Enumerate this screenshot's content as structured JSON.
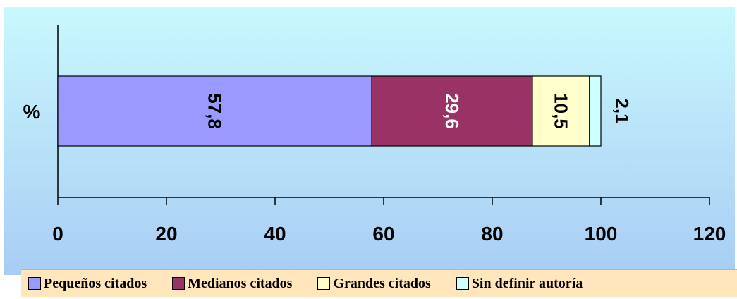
{
  "chart_data": {
    "type": "bar",
    "orientation": "horizontal",
    "stacked": true,
    "categories": [
      "%"
    ],
    "series": [
      {
        "name": "Pequeños citados",
        "values": [
          57.8
        ],
        "color": "#9999ff",
        "label": "57,8",
        "label_color": "#000000"
      },
      {
        "name": "Medianos citados",
        "values": [
          29.6
        ],
        "color": "#993366",
        "label": "29,6",
        "label_color": "#ffffff"
      },
      {
        "name": "Grandes citados",
        "values": [
          10.5
        ],
        "color": "#ffffcc",
        "label": "10,5",
        "label_color": "#000000"
      },
      {
        "name": "Sin definir autoría",
        "values": [
          2.1
        ],
        "color": "#ccffff",
        "label": "2,1",
        "label_color": "#000000"
      }
    ],
    "xlim": [
      0,
      120
    ],
    "xticks": [
      0,
      20,
      40,
      60,
      80,
      100,
      120
    ],
    "xtick_labels": [
      "0",
      "20",
      "40",
      "60",
      "80",
      "100",
      "120"
    ],
    "title": "",
    "xlabel": "",
    "ylabel": "",
    "grid": false,
    "legend_position": "bottom",
    "data_label_rotation": "vertical"
  },
  "legend": {
    "items": [
      {
        "label": "Pequeños citados",
        "color": "#9999ff"
      },
      {
        "label": "Medianos citados",
        "color": "#993366"
      },
      {
        "label": "Grandes citados",
        "color": "#ffffcc"
      },
      {
        "label": "Sin definir autoría",
        "color": "#ccffff"
      }
    ]
  }
}
